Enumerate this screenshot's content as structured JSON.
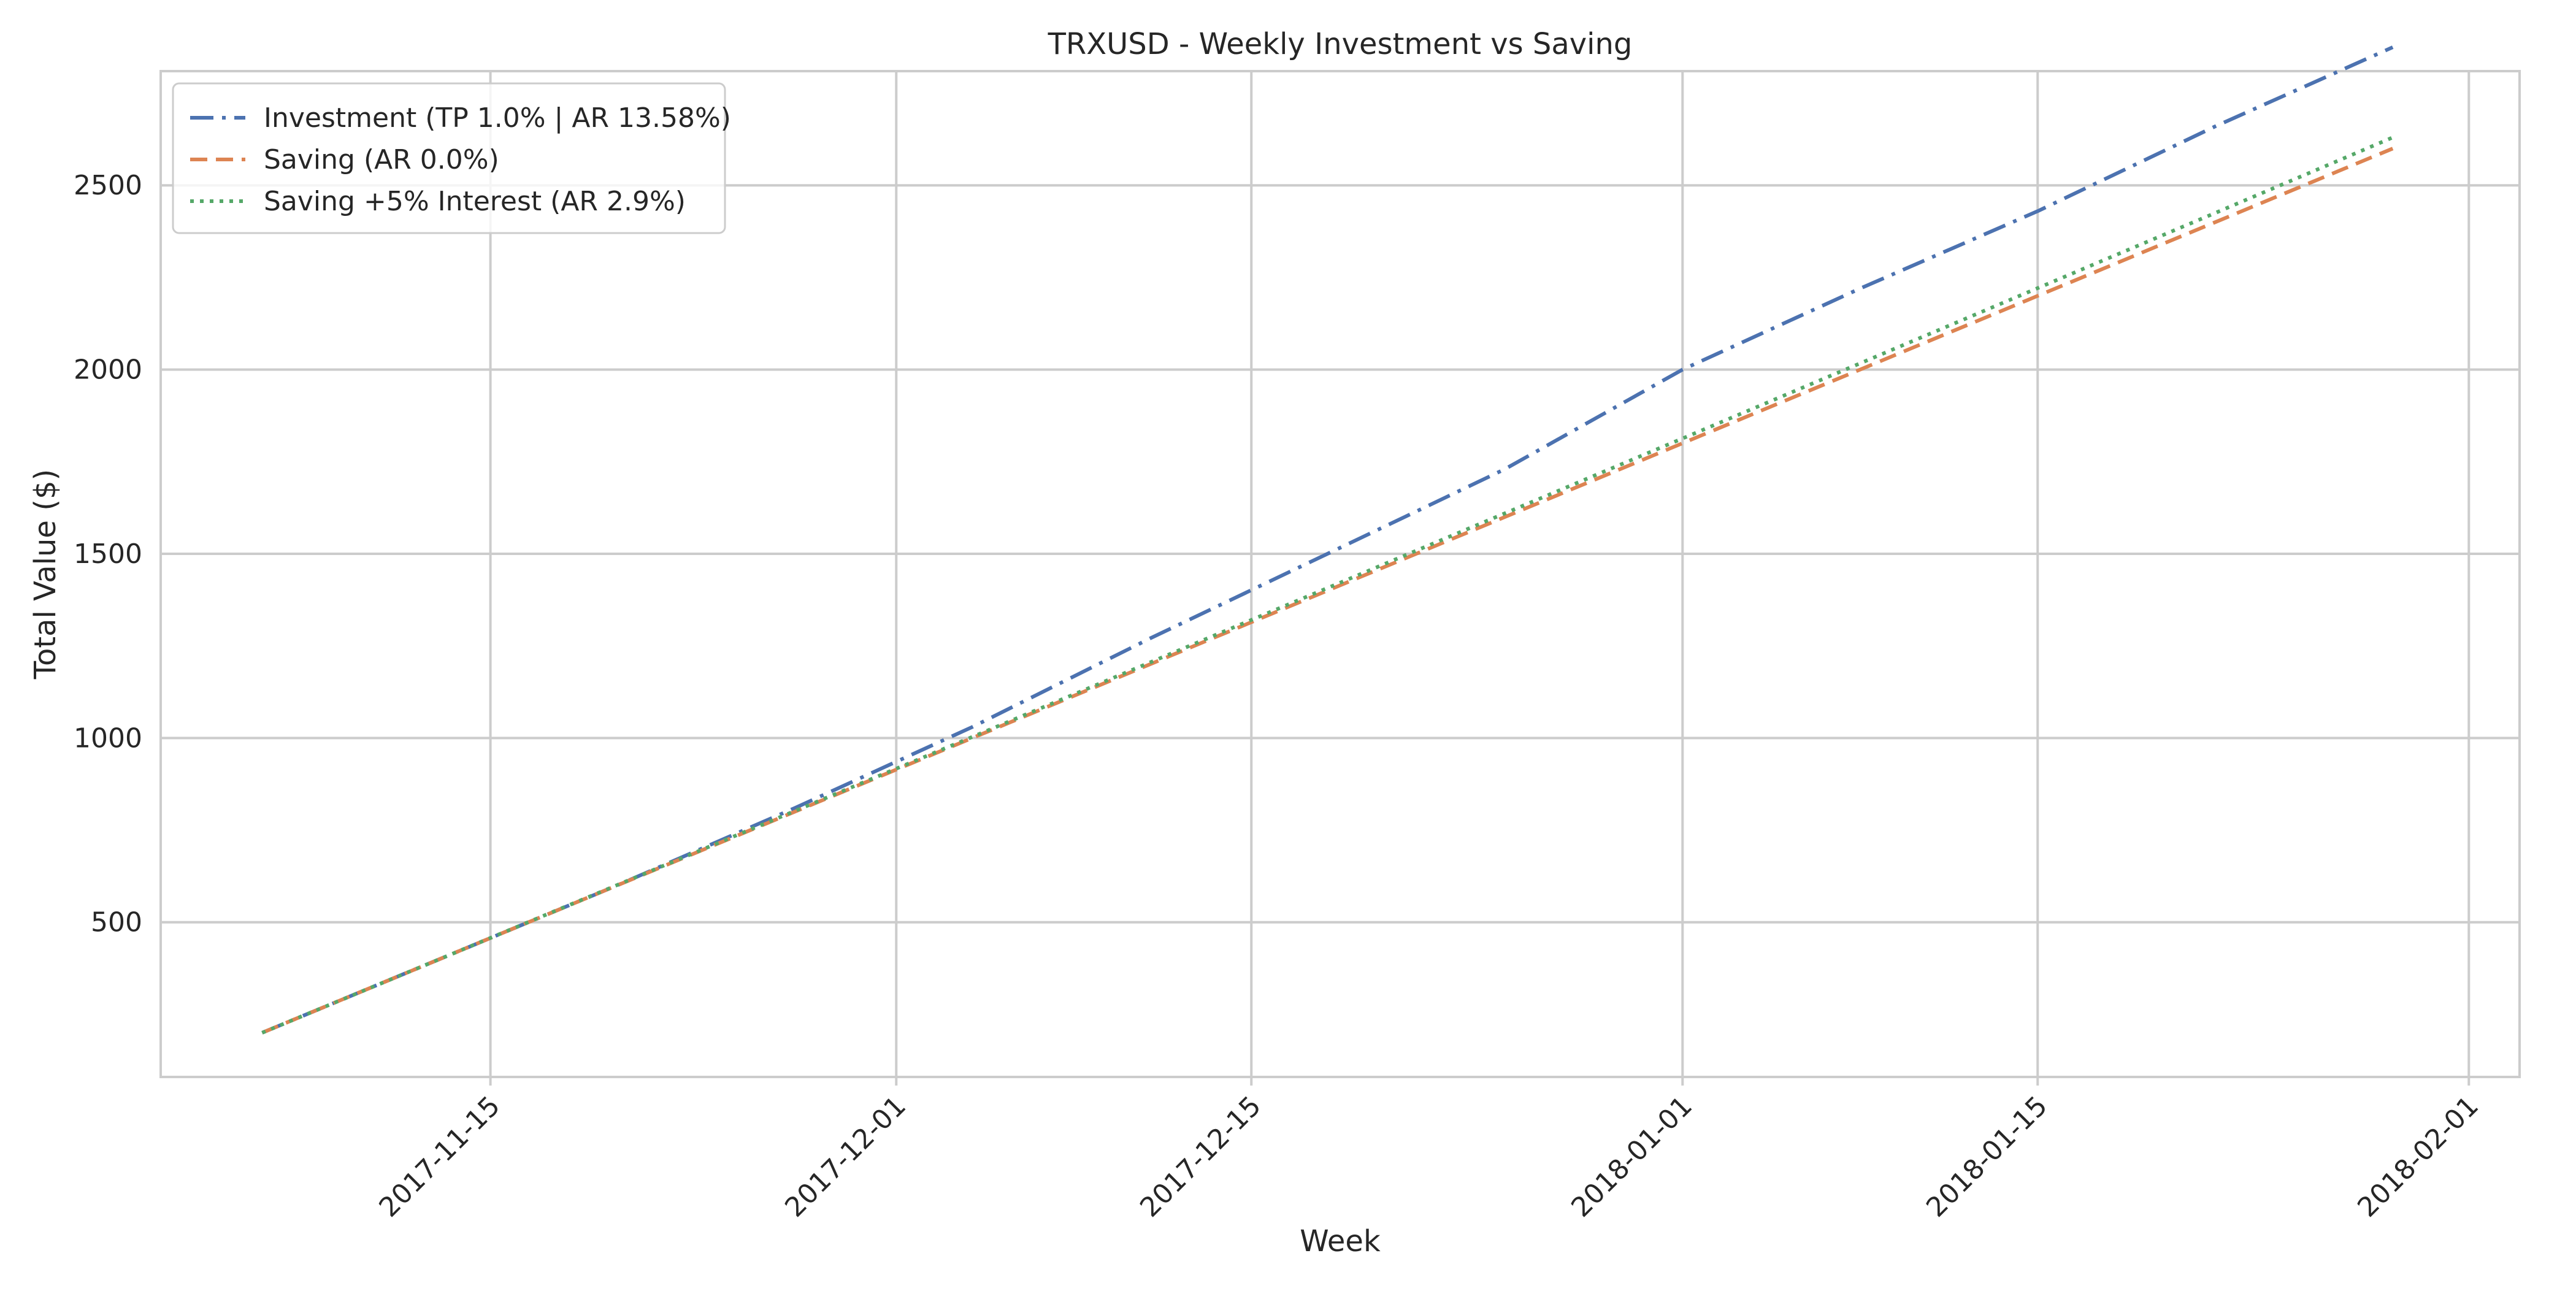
{
  "chart_data": {
    "type": "line",
    "title": "TRXUSD - Weekly Investment vs Saving",
    "xlabel": "Week",
    "ylabel": "Total Value ($)",
    "x_type": "date",
    "xlim": [
      "2017-11-02",
      "2018-02-03"
    ],
    "ylim": [
      80,
      2810
    ],
    "x_ticks": [
      "2017-11-15",
      "2017-12-01",
      "2017-12-15",
      "2018-01-01",
      "2018-01-15",
      "2018-02-01"
    ],
    "y_ticks": [
      500,
      1000,
      1500,
      2000,
      2500
    ],
    "grid": true,
    "legend_position": "upper-left",
    "x": [
      "2017-11-06",
      "2017-11-13",
      "2017-11-20",
      "2017-11-27",
      "2017-12-04",
      "2017-12-11",
      "2017-12-18",
      "2017-12-25",
      "2018-01-01",
      "2018-01-08",
      "2018-01-15",
      "2018-01-22",
      "2018-01-29"
    ],
    "series": [
      {
        "name": "Investment (TP 1.0% | AR 13.58%)",
        "color": "#4C72B0",
        "dash": "dashdot",
        "values": [
          200,
          400,
          600,
          810,
          1030,
          1270,
          1500,
          1730,
          2000,
          2220,
          2430,
          2660,
          2875
        ]
      },
      {
        "name": "Saving (AR 0.0%)",
        "color": "#DD8452",
        "dash": "dashed",
        "values": [
          200,
          400,
          600,
          800,
          1000,
          1200,
          1400,
          1600,
          1800,
          2000,
          2200,
          2400,
          2600
        ]
      },
      {
        "name": "Saving +5% Interest (AR 2.9%)",
        "color": "#55A868",
        "dash": "dotted",
        "values": [
          200,
          400,
          601,
          802,
          1003,
          1205,
          1407,
          1610,
          1813,
          2017,
          2221,
          2425,
          2630
        ]
      }
    ]
  }
}
